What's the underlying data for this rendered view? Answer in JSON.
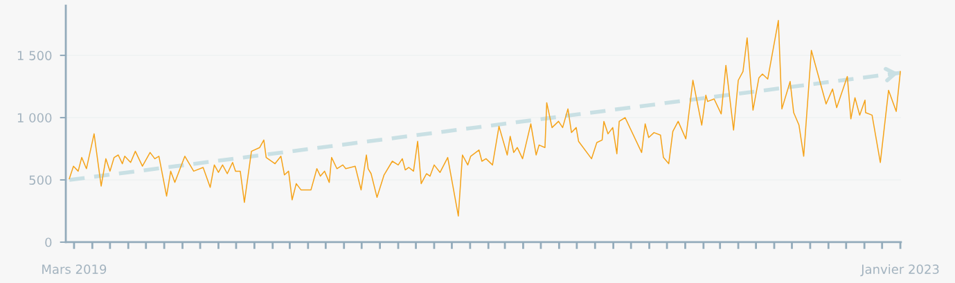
{
  "chart_data": {
    "type": "line",
    "ylim": [
      0,
      1900
    ],
    "yticks": [
      0,
      500,
      {
        "value": 1000,
        "label": "1 000"
      },
      {
        "value": 1500,
        "label": "1 500"
      }
    ],
    "xlim": [
      "2019-02-15",
      "2023-01-02"
    ],
    "xticks": [
      {
        "value": "2019-03",
        "label": "Mars 2019"
      },
      {
        "value": "2019-04",
        "label": null
      },
      {
        "value": "2019-05",
        "label": null
      },
      {
        "value": "2019-06",
        "label": null
      },
      {
        "value": "2019-07",
        "label": null
      },
      {
        "value": "2019-08",
        "label": null
      },
      {
        "value": "2019-09",
        "label": null
      },
      {
        "value": "2019-10",
        "label": null
      },
      {
        "value": "2019-11",
        "label": null
      },
      {
        "value": "2019-12",
        "label": null
      },
      {
        "value": "2020-01",
        "label": null
      },
      {
        "value": "2020-02",
        "label": null
      },
      {
        "value": "2020-03",
        "label": null
      },
      {
        "value": "2020-04",
        "label": null
      },
      {
        "value": "2020-05",
        "label": null
      },
      {
        "value": "2020-06",
        "label": null
      },
      {
        "value": "2020-07",
        "label": null
      },
      {
        "value": "2020-08",
        "label": null
      },
      {
        "value": "2020-09",
        "label": null
      },
      {
        "value": "2020-10",
        "label": null
      },
      {
        "value": "2020-11",
        "label": null
      },
      {
        "value": "2020-12",
        "label": null
      },
      {
        "value": "2021-01",
        "label": null
      },
      {
        "value": "2021-02",
        "label": null
      },
      {
        "value": "2021-03",
        "label": null
      },
      {
        "value": "2021-04",
        "label": null
      },
      {
        "value": "2021-05",
        "label": null
      },
      {
        "value": "2021-06",
        "label": null
      },
      {
        "value": "2021-07",
        "label": null
      },
      {
        "value": "2021-08",
        "label": null
      },
      {
        "value": "2021-09",
        "label": null
      },
      {
        "value": "2021-10",
        "label": null
      },
      {
        "value": "2021-11",
        "label": null
      },
      {
        "value": "2021-12",
        "label": null
      },
      {
        "value": "2022-01",
        "label": null
      },
      {
        "value": "2022-02",
        "label": null
      },
      {
        "value": "2022-03",
        "label": null
      },
      {
        "value": "2022-04",
        "label": null
      },
      {
        "value": "2022-05",
        "label": null
      },
      {
        "value": "2022-06",
        "label": null
      },
      {
        "value": "2022-07",
        "label": null
      },
      {
        "value": "2022-08",
        "label": null
      },
      {
        "value": "2022-09",
        "label": null
      },
      {
        "value": "2022-10",
        "label": null
      },
      {
        "value": "2022-11",
        "label": null
      },
      {
        "value": "2022-12",
        "label": null
      },
      {
        "value": "2023-01",
        "label": "Janvier 2023"
      }
    ],
    "grid": "y",
    "legend": false,
    "series": [
      {
        "color": "#f5a31a",
        "line_style": "solid",
        "x": [
          "2019-02-21",
          "2019-02-28",
          "2019-03-08",
          "2019-03-14",
          "2019-03-22",
          "2019-04-04",
          "2019-04-16",
          "2019-04-24",
          "2019-05-01",
          "2019-05-08",
          "2019-05-15",
          "2019-05-22",
          "2019-05-26",
          "2019-06-05",
          "2019-06-13",
          "2019-06-25",
          "2019-07-08",
          "2019-07-16",
          "2019-07-23",
          "2019-08-05",
          "2019-08-12",
          "2019-08-19",
          "2019-09-05",
          "2019-09-20",
          "2019-10-06",
          "2019-10-18",
          "2019-10-25",
          "2019-11-01",
          "2019-11-08",
          "2019-11-16",
          "2019-11-25",
          "2019-11-30",
          "2019-12-08",
          "2019-12-15",
          "2019-12-27",
          "2020-01-10",
          "2020-01-17",
          "2020-01-21",
          "2020-02-05",
          "2020-02-15",
          "2020-02-21",
          "2020-02-28",
          "2020-03-05",
          "2020-03-12",
          "2020-03-20",
          "2020-04-06",
          "2020-04-16",
          "2020-04-22",
          "2020-04-29",
          "2020-05-07",
          "2020-05-11",
          "2020-05-20",
          "2020-05-30",
          "2020-06-04",
          "2020-06-20",
          "2020-06-30",
          "2020-07-09",
          "2020-07-12",
          "2020-07-17",
          "2020-07-27",
          "2020-08-08",
          "2020-08-22",
          "2020-09-01",
          "2020-09-08",
          "2020-09-13",
          "2020-09-19",
          "2020-09-27",
          "2020-10-04",
          "2020-10-10",
          "2020-10-19",
          "2020-10-25",
          "2020-11-01",
          "2020-11-11",
          "2020-11-24",
          "2020-12-12",
          "2020-12-19",
          "2020-12-28",
          "2021-01-02",
          "2021-01-16",
          "2021-01-21",
          "2021-01-28",
          "2021-02-08",
          "2021-02-19",
          "2021-03-05",
          "2021-03-10",
          "2021-03-16",
          "2021-03-22",
          "2021-03-31",
          "2021-04-14",
          "2021-04-23",
          "2021-04-28",
          "2021-05-08",
          "2021-05-11",
          "2021-05-20",
          "2021-05-31",
          "2021-06-07",
          "2021-06-16",
          "2021-06-22",
          "2021-06-30",
          "2021-07-04",
          "2021-07-26",
          "2021-08-04",
          "2021-08-13",
          "2021-08-16",
          "2021-08-23",
          "2021-08-31",
          "2021-09-07",
          "2021-09-11",
          "2021-09-21",
          "2021-10-19",
          "2021-10-25",
          "2021-10-31",
          "2021-11-09",
          "2021-11-20",
          "2021-11-25",
          "2021-12-04",
          "2021-12-11",
          "2021-12-20",
          "2022-01-02",
          "2022-01-14",
          "2022-01-29",
          "2022-02-05",
          "2022-02-08",
          "2022-02-19",
          "2022-03-03",
          "2022-03-11",
          "2022-03-24",
          "2022-04-01",
          "2022-04-09",
          "2022-04-16",
          "2022-04-26",
          "2022-05-06",
          "2022-05-12",
          "2022-05-21",
          "2022-06-08",
          "2022-06-14",
          "2022-06-28",
          "2022-07-04",
          "2022-07-13",
          "2022-07-21",
          "2022-08-03",
          "2022-08-28",
          "2022-09-08",
          "2022-09-15",
          "2022-10-03",
          "2022-10-09",
          "2022-10-16",
          "2022-10-24",
          "2022-11-02",
          "2022-11-03",
          "2022-11-14",
          "2022-11-28",
          "2022-12-12",
          "2022-12-25",
          "2023-01-01"
        ],
        "values": [
          510,
          610,
          570,
          680,
          590,
          870,
          450,
          670,
          570,
          680,
          700,
          630,
          690,
          640,
          730,
          610,
          720,
          670,
          690,
          370,
          570,
          480,
          690,
          570,
          600,
          440,
          620,
          560,
          620,
          550,
          640,
          570,
          570,
          320,
          730,
          760,
          820,
          680,
          630,
          690,
          540,
          570,
          340,
          470,
          420,
          420,
          590,
          530,
          570,
          480,
          680,
          590,
          620,
          590,
          610,
          420,
          700,
          590,
          550,
          360,
          540,
          650,
          620,
          670,
          580,
          600,
          570,
          810,
          470,
          550,
          530,
          620,
          560,
          680,
          210,
          700,
          620,
          690,
          740,
          650,
          670,
          620,
          930,
          700,
          850,
          720,
          760,
          670,
          950,
          700,
          780,
          760,
          1120,
          920,
          970,
          920,
          1070,
          880,
          920,
          810,
          670,
          800,
          820,
          970,
          870,
          920,
          710,
          970,
          1000,
          720,
          950,
          840,
          880,
          860,
          680,
          630,
          890,
          970,
          830,
          1300,
          940,
          1180,
          1130,
          1150,
          1030,
          1420,
          900,
          1300,
          1370,
          1640,
          1060,
          1320,
          1350,
          1310,
          1780,
          1070,
          1290,
          1040,
          940,
          690,
          1540,
          1110,
          1230,
          1080,
          1330,
          990,
          1160,
          1020,
          1140,
          1040,
          1020,
          640,
          1220,
          1050,
          1370
        ]
      },
      {
        "color": "#c9e0e4",
        "line_style": "dashed",
        "x": [
          "2019-02-21",
          "2023-01-01"
        ],
        "values": [
          500,
          1360
        ]
      }
    ]
  }
}
